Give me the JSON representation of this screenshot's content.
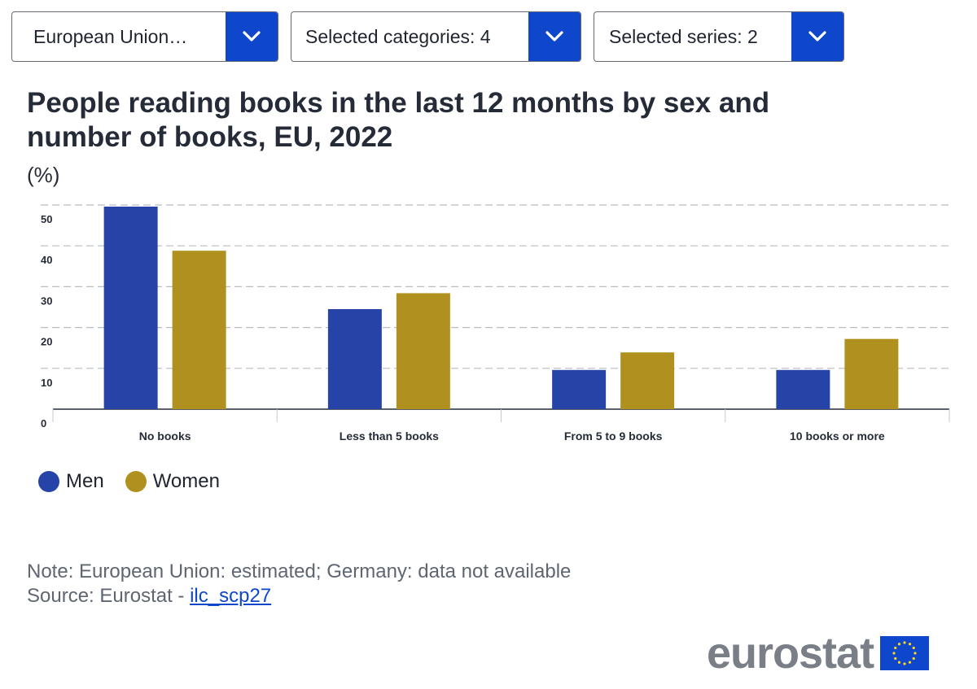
{
  "filters": {
    "geo": {
      "label": "European Union…"
    },
    "categories": {
      "label": "Selected categories: 4"
    },
    "series": {
      "label": "Selected series: 2"
    }
  },
  "chart_data": {
    "type": "bar",
    "title": "People reading books in the last 12 months by sex and number of books, EU, 2022",
    "unit": "(%)",
    "categories": [
      "No books",
      "Less than 5 books",
      "From 5 to 9 books",
      "10 books or more"
    ],
    "series": [
      {
        "name": "Men",
        "color": "#2644a7",
        "values": [
          49.6,
          24.5,
          9.6,
          9.6
        ]
      },
      {
        "name": "Women",
        "color": "#b09120",
        "values": [
          38.8,
          28.4,
          13.9,
          17.2
        ]
      }
    ],
    "ylim": [
      0,
      50
    ],
    "yticks": [
      0,
      10,
      20,
      30,
      40,
      50
    ],
    "grid": true,
    "legend_position": "bottom-left"
  },
  "legend": {
    "items": [
      {
        "label": "Men",
        "color": "#2644a7"
      },
      {
        "label": "Women",
        "color": "#b09120"
      }
    ]
  },
  "footer": {
    "note": "Note: European Union: estimated; Germany: data not available",
    "source_prefix": "Source: Eurostat - ",
    "source_link": "ilc_scp27"
  },
  "logo": {
    "text": "eurostat",
    "flag_color": "#0e47cb",
    "star_color": "#ffd617"
  },
  "icons": {
    "dropdown": "chevron-down-icon"
  },
  "colors": {
    "accent": "#0e47cb"
  }
}
